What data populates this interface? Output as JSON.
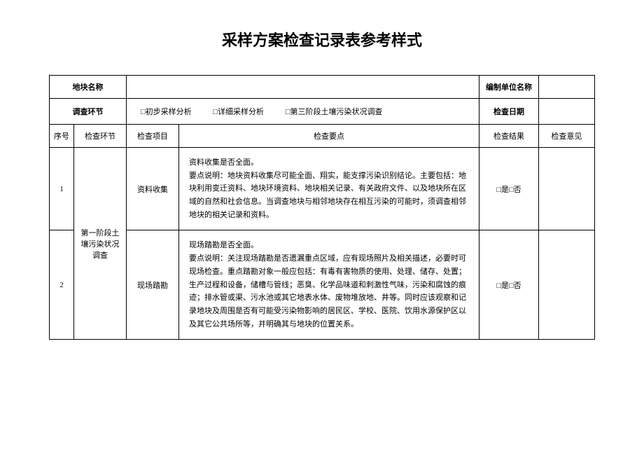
{
  "title": "采样方案检查记录表参考样式",
  "header": {
    "plot_name_label": "地块名称",
    "plot_name_value": "",
    "org_label": "编制单位名称",
    "org_value": "",
    "survey_label": "调查环节",
    "option1": "□初步采样分析",
    "option2": "□详细采样分析",
    "option3": "□第三阶段土壤污染状况调查",
    "date_label": "检查日期",
    "date_value": ""
  },
  "columns": {
    "seq": "序号",
    "stage": "检查环节",
    "item": "检查项目",
    "keypoint": "检查要点",
    "result": "检查结果",
    "opinion": "检查意见"
  },
  "stage_label": "第一阶段土壤污染状况调查",
  "rows": [
    {
      "seq": "1",
      "item": "资料收集",
      "keypoint": "资料收集是否全面。\n要点说明：地块资料收集尽可能全面、翔实，能支撑污染识别结论。主要包括：地块利用变迁资料、地块环境资料、地块相关记录、有关政府文件、以及地块所在区域的自然和社会信息。当调查地块与相邻地块存在相互污染的可能时，须调查相邻地块的相关记录和资料。",
      "result": "□是□否",
      "opinion": ""
    },
    {
      "seq": "2",
      "item": "现场踏勘",
      "keypoint": "现场踏勘是否全面。\n要点说明：关注现场踏勘是否遗漏重点区域，应有现场照片及相关描述，必要时可现场检查。重点踏勘对象一般应包括：有毒有害物质的使用、处理、储存、处置；生产过程和设备，储槽与管线；恶臭、化学品味道和刺激性气味，污染和腐蚀的痕迹；排水管或渠、污水池或其它地表水体、废物堆放地、井等。同时应该观察和记录地块及周围是否有可能受污染物影响的居民区、学校、医院、饮用水源保护区以及其它公共场所等，并明确其与地块的位置关系。",
      "result": "□是□否",
      "opinion": ""
    }
  ],
  "style": {
    "background_color": "#ffffff",
    "border_color": "#000000",
    "title_fontsize": 22,
    "body_fontsize": 11
  }
}
